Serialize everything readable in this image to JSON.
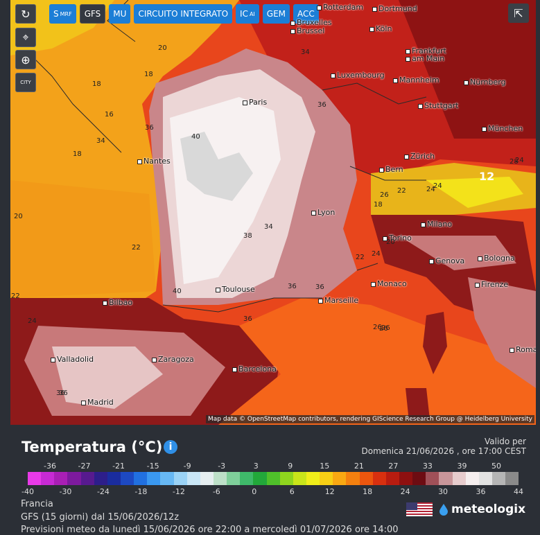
{
  "controls": {
    "refresh": "↻",
    "location": "⌖",
    "zoom": "⊕",
    "city": "CITY",
    "share": "⇱"
  },
  "models": [
    {
      "label": "S",
      "sub": "MRF",
      "active": false
    },
    {
      "label": "GFS",
      "sub": "",
      "active": true
    },
    {
      "label": "MU",
      "sub": "",
      "active": false
    },
    {
      "label": "CIRCUITO INTEGRATO",
      "sub": "",
      "active": false
    },
    {
      "label": "IC",
      "sub": "AI",
      "active": false
    },
    {
      "label": "GEM",
      "sub": "",
      "active": false
    },
    {
      "label": "ACC",
      "sub": "",
      "active": false
    }
  ],
  "cities": [
    "Rotterdam",
    "Dortmund",
    "Bruxelles",
    "Brussel",
    "Köln",
    "Frankfurt",
    "am Main",
    "Luxembourg",
    "Mannheim",
    "Nürnberg",
    "Stuttgart",
    "München",
    "Paris",
    "Nantes",
    "Zürich",
    "Bern",
    "Lyon",
    "Milano",
    "Torino",
    "Genova",
    "Bologna",
    "Monaco",
    "Firenze",
    "Toulouse",
    "Marseille",
    "Bilbao",
    "Valladolid",
    "Zaragoza",
    "Barcelona",
    "Madrid",
    "Roma"
  ],
  "isolines": [
    "20",
    "18",
    "18",
    "18",
    "36",
    "34",
    "16",
    "40",
    "36",
    "34",
    "34",
    "38",
    "40",
    "36",
    "22",
    "36",
    "24",
    "12",
    "26",
    "28",
    "26",
    "22",
    "18",
    "20",
    "24",
    "22",
    "24",
    "36",
    "36",
    "26",
    "24",
    "26",
    "22",
    "20",
    "36",
    "24"
  ],
  "attribution": "Map data © OpenStreetMap contributors, rendering GIScience Research Group @ Heidelberg University",
  "panel": {
    "title": "Temperatura (°C)",
    "info": "i",
    "valid_label": "Valido per",
    "valid_time": "Domenica 21/06/2026 , ore 17:00  CEST",
    "scale_top": [
      "-36",
      "-27",
      "-21",
      "-15",
      "-9",
      "-3",
      "3",
      "9",
      "15",
      "21",
      "27",
      "33",
      "39",
      "50"
    ],
    "scale_bottom": [
      "-40",
      "-30",
      "-24",
      "-18",
      "-12",
      "-6",
      "0",
      "6",
      "12",
      "18",
      "24",
      "30",
      "36",
      "44"
    ],
    "colors": [
      "#e93ae8",
      "#c72ad4",
      "#a91fb5",
      "#7d1a9e",
      "#571a8f",
      "#2d1e8a",
      "#1a2c9e",
      "#1d49c2",
      "#2170e0",
      "#3a98f0",
      "#67b8f4",
      "#9bd3f6",
      "#c9e6f6",
      "#e6eef0",
      "#bde0c8",
      "#7fcf9a",
      "#3fb96a",
      "#22a83a",
      "#4fc02a",
      "#8fd51e",
      "#c9e51a",
      "#f0ee1a",
      "#f7cf15",
      "#f9a812",
      "#f4800f",
      "#ec560e",
      "#d8300f",
      "#b81c10",
      "#8e1010",
      "#6d0c12",
      "#a05058",
      "#c9969a",
      "#e7cccd",
      "#f5eeee",
      "#e2e2e2",
      "#b5b5b5",
      "#8a8a8a"
    ],
    "region": "Francia",
    "model_run": "GFS  (15 giorni)  dal 15/06/2026/12z",
    "forecast": "Previsioni meteo da lunedì 15/06/2026 ore 22:00 a mercoledì 01/07/2026 ore 14:00",
    "brand": "meteologix"
  }
}
